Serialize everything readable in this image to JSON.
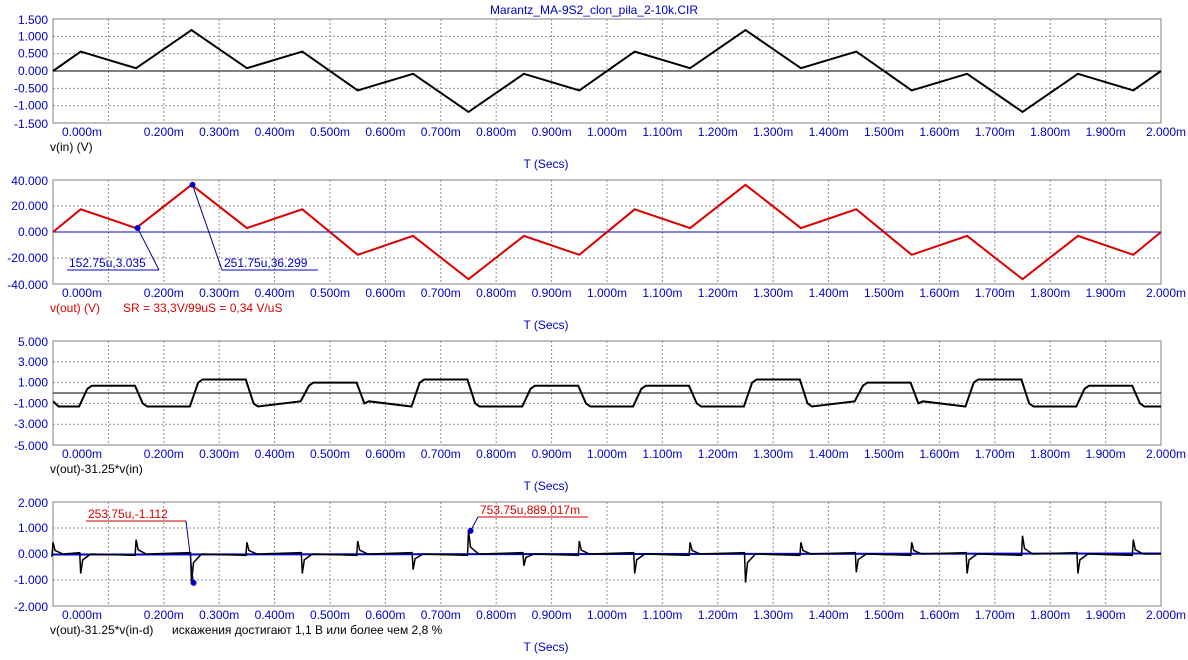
{
  "title": "Marantz_MA-9S2_clon_pila_2-10k.CIR",
  "chart_data": [
    {
      "type": "line",
      "x_ticks": [
        "0.000m",
        "0.200m",
        "0.300m",
        "0.400m",
        "0.500m",
        "0.600m",
        "0.700m",
        "0.800m",
        "0.900m",
        "1.000m",
        "1.100m",
        "1.200m",
        "1.300m",
        "1.400m",
        "1.500m",
        "1.600m",
        "1.700m",
        "1.800m",
        "1.900m",
        "2.000m"
      ],
      "x_tick_values": [
        0.0,
        0.2,
        0.3,
        0.4,
        0.5,
        0.6,
        0.7,
        0.8,
        0.9,
        1.0,
        1.1,
        1.2,
        1.3,
        1.4,
        1.5,
        1.6,
        1.7,
        1.8,
        1.9,
        2.0
      ],
      "xlim": [
        0.0,
        2.0
      ],
      "y_ticks": [
        "1.500",
        "1.000",
        "0.500",
        "0.000",
        "-0.500",
        "-1.000",
        "-1.500"
      ],
      "y_tick_values": [
        1.5,
        1.0,
        0.5,
        0.0,
        -0.5,
        -1.0,
        -1.5
      ],
      "ylim": [
        -1.5,
        1.5
      ],
      "xlabel": "T (Secs)",
      "trace_label": "v(in) (V)",
      "trace_color": "#000000",
      "zero_line": true,
      "grid": true,
      "series": [
        {
          "name": "v(in) (V)",
          "x": [
            0,
            0.05,
            0.15,
            0.25,
            0.35,
            0.45,
            0.55,
            0.65,
            0.75,
            0.85,
            0.95,
            1.05,
            1.15,
            1.25,
            1.35,
            1.45,
            1.55,
            1.65,
            1.75,
            1.85,
            1.95,
            2.0
          ],
          "y": [
            0,
            0.56,
            0.08,
            1.18,
            0.08,
            0.56,
            -0.56,
            -0.08,
            -1.18,
            -0.08,
            -0.56,
            0.56,
            0.08,
            1.18,
            0.08,
            0.56,
            -0.56,
            -0.08,
            -1.18,
            -0.08,
            -0.56,
            0
          ]
        }
      ]
    },
    {
      "type": "line",
      "x_ticks": [
        "0.000m",
        "0.200m",
        "0.300m",
        "0.400m",
        "0.500m",
        "0.600m",
        "0.700m",
        "0.800m",
        "0.900m",
        "1.000m",
        "1.100m",
        "1.200m",
        "1.300m",
        "1.400m",
        "1.500m",
        "1.600m",
        "1.700m",
        "1.800m",
        "1.900m",
        "2.000m"
      ],
      "x_tick_values": [
        0.0,
        0.2,
        0.3,
        0.4,
        0.5,
        0.6,
        0.7,
        0.8,
        0.9,
        1.0,
        1.1,
        1.2,
        1.3,
        1.4,
        1.5,
        1.6,
        1.7,
        1.8,
        1.9,
        2.0
      ],
      "xlim": [
        0.0,
        2.0
      ],
      "y_ticks": [
        "40.000",
        "20.000",
        "0.000",
        "-20.000",
        "-40.000"
      ],
      "y_tick_values": [
        40,
        20,
        0,
        -20,
        -40
      ],
      "ylim": [
        -40,
        40
      ],
      "xlabel": "T (Secs)",
      "trace_label": "v(out) (V)",
      "trace_color": "#dd0000",
      "annotation": "SR = 33,3V/99uS = 0,34 V/uS",
      "zero_line": true,
      "grid": true,
      "series": [
        {
          "name": "v(out) (V)",
          "x": [
            0,
            0.05,
            0.15,
            0.25,
            0.35,
            0.45,
            0.55,
            0.65,
            0.75,
            0.85,
            0.95,
            1.05,
            1.15,
            1.25,
            1.35,
            1.45,
            1.55,
            1.65,
            1.75,
            1.85,
            1.95,
            2.0
          ],
          "y": [
            0,
            17.5,
            3,
            36.3,
            3,
            17.5,
            -17.5,
            -3,
            -36.3,
            -3,
            -17.5,
            17.5,
            3,
            36.3,
            3,
            17.5,
            -17.5,
            -3,
            -36.3,
            -3,
            -17.5,
            0
          ]
        }
      ],
      "markers": [
        {
          "text": "152.75u,3.035",
          "x": 0.15275,
          "y": 3.035
        },
        {
          "text": "251.75u,36.299",
          "x": 0.25175,
          "y": 36.299
        }
      ]
    },
    {
      "type": "line",
      "x_ticks": [
        "0.000m",
        "0.200m",
        "0.300m",
        "0.400m",
        "0.500m",
        "0.600m",
        "0.700m",
        "0.800m",
        "0.900m",
        "1.000m",
        "1.100m",
        "1.200m",
        "1.300m",
        "1.400m",
        "1.500m",
        "1.600m",
        "1.700m",
        "1.800m",
        "1.900m",
        "2.000m"
      ],
      "x_tick_values": [
        0.0,
        0.2,
        0.3,
        0.4,
        0.5,
        0.6,
        0.7,
        0.8,
        0.9,
        1.0,
        1.1,
        1.2,
        1.3,
        1.4,
        1.5,
        1.6,
        1.7,
        1.8,
        1.9,
        2.0
      ],
      "xlim": [
        0.0,
        2.0
      ],
      "y_ticks": [
        "5.000",
        "3.000",
        "1.000",
        "-1.000",
        "-3.000",
        "-5.000"
      ],
      "y_tick_values": [
        5,
        3,
        1,
        -1,
        -3,
        -5
      ],
      "ylim": [
        -5,
        5
      ],
      "xlabel": "T (Secs)",
      "trace_label": "v(out)-31.25*v(in)",
      "trace_color": "#000000",
      "zero_line": true,
      "grid": true,
      "square_wave": {
        "levels": [
          {
            "start": 0.05,
            "end": 0.15,
            "high": 0.7,
            "low": -1.3
          },
          {
            "start": 0.25,
            "end": 0.35,
            "high": 1.3,
            "low": -1.3
          },
          {
            "start": 0.45,
            "end": 0.55,
            "high": 1.0,
            "low": -0.8
          },
          {
            "start": 0.65,
            "end": 0.75,
            "high": 1.3,
            "low": -1.3
          },
          {
            "start": 0.85,
            "end": 0.95,
            "high": 0.7,
            "low": -1.3
          },
          {
            "start": 1.05,
            "end": 1.15,
            "high": 0.7,
            "low": -1.3
          },
          {
            "start": 1.25,
            "end": 1.35,
            "high": 1.3,
            "low": -1.3
          },
          {
            "start": 1.45,
            "end": 1.55,
            "high": 1.0,
            "low": -0.8
          },
          {
            "start": 1.65,
            "end": 1.75,
            "high": 1.3,
            "low": -1.3
          },
          {
            "start": 1.85,
            "end": 1.95,
            "high": 0.7,
            "low": -1.3
          }
        ]
      }
    },
    {
      "type": "line",
      "x_ticks": [
        "0.000m",
        "0.200m",
        "0.300m",
        "0.400m",
        "0.500m",
        "0.600m",
        "0.700m",
        "0.800m",
        "0.900m",
        "1.000m",
        "1.100m",
        "1.200m",
        "1.300m",
        "1.400m",
        "1.500m",
        "1.600m",
        "1.700m",
        "1.800m",
        "1.900m",
        "2.000m"
      ],
      "x_tick_values": [
        0.0,
        0.2,
        0.3,
        0.4,
        0.5,
        0.6,
        0.7,
        0.8,
        0.9,
        1.0,
        1.1,
        1.2,
        1.3,
        1.4,
        1.5,
        1.6,
        1.7,
        1.8,
        1.9,
        2.0
      ],
      "xlim": [
        0.0,
        2.0
      ],
      "y_ticks": [
        "2.000",
        "1.000",
        "0.000",
        "-1.000",
        "-2.000"
      ],
      "y_tick_values": [
        2,
        1,
        0,
        -1,
        -2
      ],
      "ylim": [
        -2,
        2
      ],
      "xlabel": "T (Secs)",
      "trace_label": "v(out)-31.25*v(in-d)",
      "trace_color": "#000000",
      "annotation": "искажения достигают 1,1 В или более чем 2,8 %",
      "zero_line": true,
      "grid": true,
      "spikes": [
        {
          "x": 0.0,
          "y": 0.45
        },
        {
          "x": 0.05,
          "y": -0.75
        },
        {
          "x": 0.15,
          "y": 0.55
        },
        {
          "x": 0.25,
          "y": -1.11
        },
        {
          "x": 0.35,
          "y": 0.45
        },
        {
          "x": 0.45,
          "y": -0.75
        },
        {
          "x": 0.55,
          "y": 0.5
        },
        {
          "x": 0.65,
          "y": -0.6
        },
        {
          "x": 0.75,
          "y": 0.89
        },
        {
          "x": 0.85,
          "y": -0.45
        },
        {
          "x": 0.95,
          "y": 0.5
        },
        {
          "x": 1.05,
          "y": -0.75
        },
        {
          "x": 1.15,
          "y": 0.45
        },
        {
          "x": 1.25,
          "y": -1.1
        },
        {
          "x": 1.35,
          "y": 0.45
        },
        {
          "x": 1.45,
          "y": -0.7
        },
        {
          "x": 1.55,
          "y": 0.45
        },
        {
          "x": 1.65,
          "y": -0.75
        },
        {
          "x": 1.75,
          "y": 0.7
        },
        {
          "x": 1.85,
          "y": -0.75
        },
        {
          "x": 1.95,
          "y": 0.55
        }
      ],
      "markers": [
        {
          "text": "253.75u,-1.112",
          "x": 0.25375,
          "y": -1.112
        },
        {
          "text": "753.75u,889.017m",
          "x": 0.75375,
          "y": 0.889
        }
      ]
    }
  ]
}
